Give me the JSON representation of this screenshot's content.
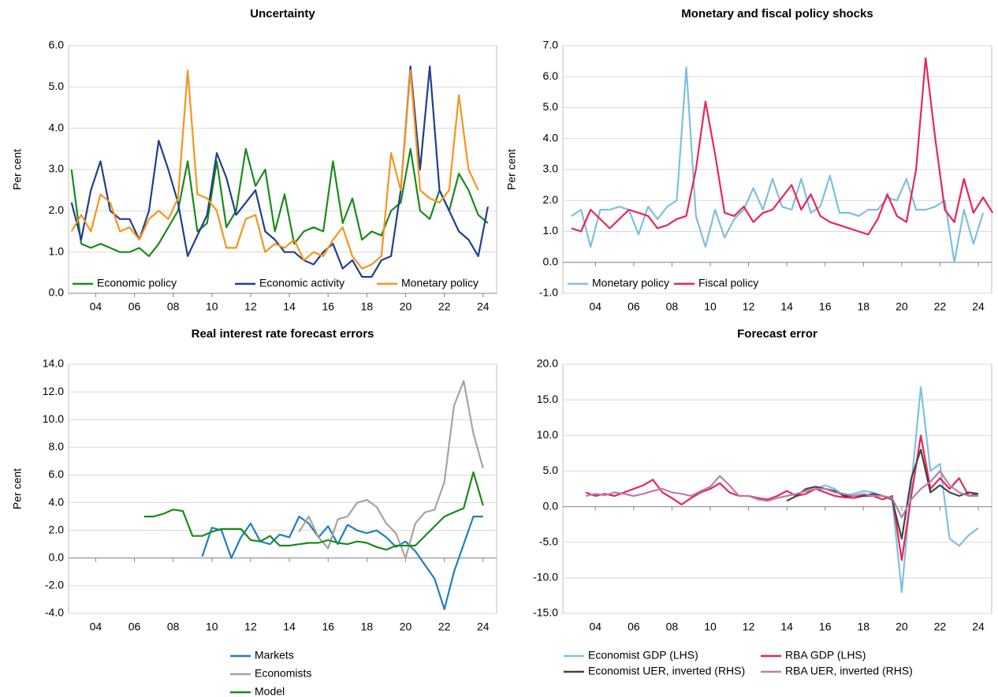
{
  "chart_data": [
    {
      "type": "line",
      "title": "Uncertainty",
      "y_label": "Per cent",
      "legend": "lower left",
      "grid": true,
      "xlim": [
        2002.6,
        2024.7
      ],
      "xticks": [
        {
          "value": 2004,
          "label": "04"
        },
        {
          "value": 2006,
          "label": "06"
        },
        {
          "value": 2008,
          "label": "08"
        },
        {
          "value": 2010,
          "label": "10"
        },
        {
          "value": 2012,
          "label": "12"
        },
        {
          "value": 2014,
          "label": "14"
        },
        {
          "value": 2016,
          "label": "16"
        },
        {
          "value": 2018,
          "label": "18"
        },
        {
          "value": 2020,
          "label": "20"
        },
        {
          "value": 2022,
          "label": "22"
        },
        {
          "value": 2024,
          "label": "24"
        }
      ],
      "ylim": [
        0,
        6
      ],
      "yticks": [
        {
          "value": 0,
          "label": "0.0"
        },
        {
          "value": 1,
          "label": "1.0"
        },
        {
          "value": 2,
          "label": "2.0"
        },
        {
          "value": 3,
          "label": "3.0"
        },
        {
          "value": 4,
          "label": "4.0"
        },
        {
          "value": 5,
          "label": "5.0"
        },
        {
          "value": 6,
          "label": "6.0"
        }
      ],
      "x": [
        2002.75,
        2003.25,
        2003.75,
        2004.25,
        2004.75,
        2005.25,
        2005.75,
        2006.25,
        2006.75,
        2007.25,
        2007.75,
        2008.25,
        2008.75,
        2009.25,
        2009.75,
        2010.25,
        2010.75,
        2011.25,
        2011.75,
        2012.25,
        2012.75,
        2013.25,
        2013.75,
        2014.25,
        2014.75,
        2015.25,
        2015.75,
        2016.25,
        2016.75,
        2017.25,
        2017.75,
        2018.25,
        2018.75,
        2019.25,
        2019.75,
        2020.25,
        2020.75,
        2021.25,
        2021.75,
        2022.25,
        2022.75,
        2023.25,
        2023.75,
        2024.25
      ],
      "series": [
        {
          "name": "Economic policy",
          "color": "#1a8a1a",
          "values": [
            3.0,
            1.2,
            1.1,
            1.2,
            1.1,
            1.0,
            1.0,
            1.1,
            0.9,
            1.2,
            1.6,
            2.0,
            3.2,
            1.5,
            1.7,
            3.2,
            1.6,
            2.0,
            3.5,
            2.6,
            3.0,
            1.5,
            2.4,
            1.2,
            1.5,
            1.6,
            1.5,
            3.2,
            1.7,
            2.3,
            1.3,
            1.5,
            1.4,
            2.0,
            2.2,
            3.5,
            2.0,
            1.8,
            2.5,
            2.0,
            2.9,
            2.5,
            1.9,
            1.7
          ]
        },
        {
          "name": "Economic activity",
          "color": "#1f3f8f",
          "values": [
            2.2,
            1.3,
            2.5,
            3.2,
            2.0,
            1.8,
            1.8,
            1.3,
            2.0,
            3.7,
            3.0,
            2.2,
            0.9,
            1.4,
            1.9,
            3.4,
            2.8,
            1.9,
            2.2,
            2.5,
            1.5,
            1.3,
            1.0,
            1.0,
            0.8,
            0.7,
            1.0,
            1.2,
            0.6,
            0.8,
            0.4,
            0.4,
            0.8,
            0.9,
            2.5,
            5.5,
            3.0,
            5.5,
            2.5,
            2.0,
            1.5,
            1.3,
            0.9,
            2.1
          ]
        },
        {
          "name": "Monetary policy",
          "color": "#f7941d",
          "values": [
            1.5,
            1.9,
            1.5,
            2.4,
            2.2,
            1.5,
            1.6,
            1.3,
            1.8,
            2.0,
            1.8,
            2.3,
            5.4,
            2.4,
            2.3,
            2.0,
            1.1,
            1.1,
            1.8,
            1.9,
            1.0,
            1.2,
            1.1,
            1.3,
            0.8,
            1.0,
            0.9,
            1.3,
            1.6,
            0.9,
            0.6,
            0.7,
            0.9,
            3.4,
            2.5,
            5.4,
            2.5,
            2.3,
            2.2,
            2.5,
            4.8,
            3.0,
            2.5,
            null
          ]
        }
      ]
    },
    {
      "type": "line",
      "title": "Monetary and fiscal policy shocks",
      "y_label": "Per cent",
      "legend": "lower left",
      "grid": true,
      "xlim": [
        2002.3,
        2024.7
      ],
      "xticks": [
        {
          "value": 2004,
          "label": "04"
        },
        {
          "value": 2006,
          "label": "06"
        },
        {
          "value": 2008,
          "label": "08"
        },
        {
          "value": 2010,
          "label": "10"
        },
        {
          "value": 2012,
          "label": "12"
        },
        {
          "value": 2014,
          "label": "14"
        },
        {
          "value": 2016,
          "label": "16"
        },
        {
          "value": 2018,
          "label": "18"
        },
        {
          "value": 2020,
          "label": "20"
        },
        {
          "value": 2022,
          "label": "22"
        },
        {
          "value": 2024,
          "label": "24"
        }
      ],
      "ylim": [
        -1,
        7
      ],
      "yticks": [
        {
          "value": -1,
          "label": "-1.0"
        },
        {
          "value": 0,
          "label": "0.0"
        },
        {
          "value": 1,
          "label": "1.0"
        },
        {
          "value": 2,
          "label": "2.0"
        },
        {
          "value": 3,
          "label": "3.0"
        },
        {
          "value": 4,
          "label": "4.0"
        },
        {
          "value": 5,
          "label": "5.0"
        },
        {
          "value": 6,
          "label": "6.0"
        },
        {
          "value": 7,
          "label": "7.0"
        }
      ],
      "x": [
        2002.75,
        2003.25,
        2003.75,
        2004.25,
        2004.75,
        2005.25,
        2005.75,
        2006.25,
        2006.75,
        2007.25,
        2007.75,
        2008.25,
        2008.75,
        2009.25,
        2009.75,
        2010.25,
        2010.75,
        2011.25,
        2011.75,
        2012.25,
        2012.75,
        2013.25,
        2013.75,
        2014.25,
        2014.75,
        2015.25,
        2015.75,
        2016.25,
        2016.75,
        2017.25,
        2017.75,
        2018.25,
        2018.75,
        2019.25,
        2019.75,
        2020.25,
        2020.75,
        2021.25,
        2021.75,
        2022.25,
        2022.75,
        2023.25,
        2023.75,
        2024.25,
        2024.75
      ],
      "series": [
        {
          "name": "Monetary policy",
          "color": "#7fbfdf",
          "values": [
            1.5,
            1.7,
            0.5,
            1.7,
            1.7,
            1.8,
            1.7,
            0.9,
            1.8,
            1.4,
            1.8,
            2.0,
            6.3,
            1.5,
            0.5,
            1.7,
            0.8,
            1.4,
            1.7,
            2.4,
            1.7,
            2.7,
            1.8,
            1.7,
            2.7,
            1.6,
            1.8,
            2.8,
            1.6,
            1.6,
            1.5,
            1.7,
            1.7,
            2.1,
            2.0,
            2.7,
            1.7,
            1.7,
            1.8,
            2.0,
            0.0,
            1.7,
            0.6,
            1.6,
            null
          ]
        },
        {
          "name": "Fiscal policy",
          "color": "#e8265a",
          "values": [
            1.1,
            1.0,
            1.7,
            1.4,
            1.1,
            1.4,
            1.7,
            1.6,
            1.5,
            1.1,
            1.2,
            1.4,
            1.5,
            3.0,
            5.2,
            3.5,
            1.6,
            1.5,
            1.8,
            1.3,
            1.6,
            1.7,
            2.1,
            2.5,
            1.7,
            2.2,
            1.5,
            1.3,
            1.2,
            1.1,
            1.0,
            0.9,
            1.4,
            2.2,
            1.5,
            1.3,
            3.0,
            6.6,
            4.0,
            1.7,
            1.3,
            2.7,
            1.6,
            2.1,
            1.6
          ]
        }
      ]
    },
    {
      "type": "line",
      "title": "Real interest rate forecast errors",
      "y_label": "Per cent",
      "legend": "below",
      "grid": true,
      "xlim": [
        2002.6,
        2024.7
      ],
      "xticks": [
        {
          "value": 2004,
          "label": "04"
        },
        {
          "value": 2006,
          "label": "06"
        },
        {
          "value": 2008,
          "label": "08"
        },
        {
          "value": 2010,
          "label": "10"
        },
        {
          "value": 2012,
          "label": "12"
        },
        {
          "value": 2014,
          "label": "14"
        },
        {
          "value": 2016,
          "label": "16"
        },
        {
          "value": 2018,
          "label": "18"
        },
        {
          "value": 2020,
          "label": "20"
        },
        {
          "value": 2022,
          "label": "22"
        },
        {
          "value": 2024,
          "label": "24"
        }
      ],
      "ylim": [
        -4,
        14
      ],
      "yticks": [
        {
          "value": -4,
          "label": "-4.0"
        },
        {
          "value": -2,
          "label": "-2.0"
        },
        {
          "value": 0,
          "label": "0.0"
        },
        {
          "value": 2,
          "label": "2.0"
        },
        {
          "value": 4,
          "label": "4.0"
        },
        {
          "value": 6,
          "label": "6.0"
        },
        {
          "value": 8,
          "label": "8.0"
        },
        {
          "value": 10,
          "label": "10.0"
        },
        {
          "value": 12,
          "label": "12.0"
        },
        {
          "value": 14,
          "label": "14.0"
        }
      ],
      "x": [
        2006.5,
        2007.0,
        2007.5,
        2008.0,
        2008.5,
        2009.0,
        2009.5,
        2010.0,
        2010.5,
        2011.0,
        2011.5,
        2012.0,
        2012.5,
        2013.0,
        2013.5,
        2014.0,
        2014.5,
        2015.0,
        2015.5,
        2016.0,
        2016.5,
        2017.0,
        2017.5,
        2018.0,
        2018.5,
        2019.0,
        2019.5,
        2020.0,
        2020.5,
        2021.0,
        2021.5,
        2022.0,
        2022.5,
        2023.0,
        2023.5,
        2024.0
      ],
      "series": [
        {
          "name": "Markets",
          "color": "#1f7fc0",
          "values": [
            null,
            null,
            null,
            null,
            null,
            null,
            0.1,
            2.2,
            2.0,
            0.0,
            1.5,
            2.5,
            1.2,
            1.0,
            1.7,
            1.5,
            3.0,
            2.5,
            1.5,
            2.3,
            1.0,
            2.4,
            2.0,
            1.8,
            2.0,
            1.5,
            0.8,
            1.2,
            0.5,
            -0.5,
            -1.5,
            -3.7,
            -1.0,
            1.0,
            3.0,
            3.0
          ]
        },
        {
          "name": "Economists",
          "color": "#aaa39c",
          "values": [
            null,
            null,
            null,
            null,
            null,
            null,
            null,
            null,
            null,
            null,
            null,
            null,
            null,
            null,
            null,
            null,
            1.9,
            3.0,
            1.5,
            0.7,
            2.8,
            3.0,
            4.0,
            4.2,
            3.7,
            2.5,
            1.8,
            0.0,
            2.5,
            3.3,
            3.5,
            5.5,
            11.0,
            12.8,
            9.0,
            6.5
          ]
        },
        {
          "name": "Model",
          "color": "#1a8a1a",
          "values": [
            3.0,
            3.0,
            3.2,
            3.5,
            3.4,
            1.6,
            1.6,
            1.9,
            2.1,
            2.1,
            2.1,
            1.3,
            1.2,
            1.6,
            0.9,
            0.9,
            1.0,
            1.1,
            1.1,
            1.3,
            1.1,
            1.0,
            1.2,
            1.1,
            0.8,
            0.6,
            0.9,
            0.9,
            0.9,
            1.6,
            2.3,
            3.0,
            3.3,
            3.6,
            6.2,
            3.8
          ]
        }
      ]
    },
    {
      "type": "line",
      "title": "Forecast error",
      "legend": "below",
      "grid": true,
      "xlim": [
        2002.3,
        2024.7
      ],
      "xticks": [
        {
          "value": 2004,
          "label": "04"
        },
        {
          "value": 2006,
          "label": "06"
        },
        {
          "value": 2008,
          "label": "08"
        },
        {
          "value": 2010,
          "label": "10"
        },
        {
          "value": 2012,
          "label": "12"
        },
        {
          "value": 2014,
          "label": "14"
        },
        {
          "value": 2016,
          "label": "16"
        },
        {
          "value": 2018,
          "label": "18"
        },
        {
          "value": 2020,
          "label": "20"
        },
        {
          "value": 2022,
          "label": "22"
        },
        {
          "value": 2024,
          "label": "24"
        }
      ],
      "ylim": [
        -15,
        20
      ],
      "yticks": [
        {
          "value": -15,
          "label": "-15.0"
        },
        {
          "value": -10,
          "label": "-10.0"
        },
        {
          "value": -5,
          "label": "-5.0"
        },
        {
          "value": 0,
          "label": "0.0"
        },
        {
          "value": 5,
          "label": "5.0"
        },
        {
          "value": 10,
          "label": "10.0"
        },
        {
          "value": 15,
          "label": "15.0"
        },
        {
          "value": 20,
          "label": "20.0"
        }
      ],
      "x": [
        2003.5,
        2004.0,
        2004.5,
        2005.0,
        2005.5,
        2006.0,
        2006.5,
        2007.0,
        2007.5,
        2008.0,
        2008.5,
        2009.0,
        2009.5,
        2010.0,
        2010.5,
        2011.0,
        2011.5,
        2012.0,
        2012.5,
        2013.0,
        2013.5,
        2014.0,
        2014.5,
        2015.0,
        2015.5,
        2016.0,
        2016.5,
        2017.0,
        2017.5,
        2018.0,
        2018.5,
        2019.0,
        2019.5,
        2020.0,
        2020.5,
        2021.0,
        2021.5,
        2022.0,
        2022.5,
        2023.0,
        2023.5,
        2024.0
      ],
      "series": [
        {
          "name": "Economist GDP (LHS)",
          "color": "#7fc1e0",
          "values": [
            null,
            null,
            null,
            null,
            null,
            null,
            null,
            null,
            null,
            null,
            null,
            null,
            null,
            null,
            null,
            null,
            null,
            null,
            null,
            null,
            null,
            null,
            null,
            2.0,
            2.5,
            3.0,
            2.5,
            1.5,
            1.8,
            2.2,
            2.0,
            1.5,
            1.2,
            -12.0,
            3.0,
            16.8,
            5.0,
            6.0,
            -4.5,
            -5.5,
            -4.0,
            -3.0
          ]
        },
        {
          "name": "RBA GDP (LHS)",
          "color": "#e8265a",
          "values": [
            2.0,
            1.5,
            1.8,
            1.5,
            2.0,
            2.5,
            3.0,
            3.8,
            2.0,
            1.2,
            0.3,
            1.2,
            2.0,
            2.5,
            3.3,
            2.0,
            1.5,
            1.5,
            1.2,
            1.0,
            1.5,
            2.2,
            1.5,
            1.8,
            2.5,
            2.0,
            1.5,
            1.3,
            1.2,
            1.5,
            1.5,
            1.0,
            1.5,
            -7.5,
            1.5,
            10.0,
            2.5,
            4.0,
            2.5,
            4.0,
            1.5,
            1.8
          ]
        },
        {
          "name": "Economist UER, inverted (RHS)",
          "color": "#444444",
          "values": [
            null,
            null,
            null,
            null,
            null,
            null,
            null,
            null,
            null,
            null,
            null,
            null,
            null,
            null,
            null,
            null,
            null,
            null,
            null,
            null,
            null,
            0.8,
            1.5,
            2.5,
            2.8,
            2.5,
            2.2,
            1.5,
            1.5,
            1.5,
            1.8,
            1.5,
            1.0,
            -4.5,
            4.0,
            8.0,
            2.0,
            3.0,
            2.0,
            1.5,
            2.0,
            1.8
          ]
        },
        {
          "name": "RBA UER, inverted (RHS)",
          "color": "#b87fb0",
          "values": [
            1.5,
            1.8,
            1.6,
            2.0,
            1.8,
            1.5,
            1.8,
            2.2,
            2.5,
            2.0,
            1.8,
            1.5,
            2.2,
            2.8,
            4.3,
            3.0,
            1.5,
            1.5,
            1.0,
            0.8,
            1.2,
            1.5,
            1.8,
            2.2,
            2.5,
            2.5,
            2.0,
            1.8,
            1.5,
            1.8,
            1.5,
            1.5,
            1.2,
            -1.5,
            1.0,
            2.5,
            3.5,
            5.0,
            3.0,
            2.0,
            1.5,
            1.5
          ]
        }
      ]
    }
  ]
}
